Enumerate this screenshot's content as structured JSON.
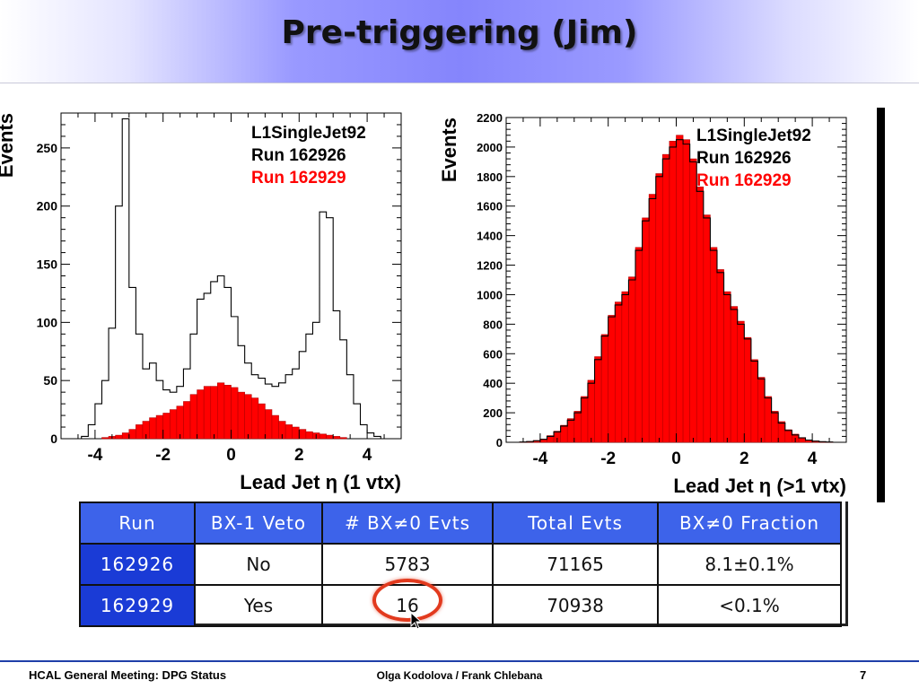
{
  "slide": {
    "title": "Pre-triggering (Jim)",
    "footer_left": "HCAL General Meeting: DPG Status",
    "footer_center": "Olga Kodolova / Frank Chlebana",
    "footer_right": "7"
  },
  "colors": {
    "title_gradient_center": "#8585fc",
    "header_blue": "#3d63ea",
    "run_cell_blue": "#1a3bd6",
    "series_red": "#ff0000",
    "series_black": "#000000",
    "highlight_circle": "#e23a1e",
    "footer_rule": "#1f3fa8"
  },
  "table": {
    "headers": [
      "Run",
      "BX-1 Veto",
      "# BX≠0 Evts",
      "Total Evts",
      "BX≠0 Fraction"
    ],
    "rows": [
      [
        "162926",
        "No",
        "5783",
        "71165",
        "8.1±0.1%"
      ],
      [
        "162929",
        "Yes",
        "16",
        "70938",
        "<0.1%"
      ]
    ]
  },
  "chart_data": [
    {
      "type": "line",
      "legend": [
        "L1SingleJet92",
        "Run 162926",
        "Run 162929"
      ],
      "xlabel": "Lead Jet η (1 vtx)",
      "ylabel": "Events",
      "xlim": [
        -5,
        5
      ],
      "ylim": [
        0,
        280
      ],
      "xticks": [
        -4,
        -2,
        0,
        2,
        4
      ],
      "yticks": [
        0,
        50,
        100,
        150,
        200,
        250
      ],
      "series": [
        {
          "name": "Run 162926",
          "color": "#000000",
          "style": "step",
          "x": [
            -4.3,
            -4.1,
            -3.9,
            -3.7,
            -3.5,
            -3.3,
            -3.1,
            -2.9,
            -2.7,
            -2.5,
            -2.3,
            -2.1,
            -1.9,
            -1.7,
            -1.5,
            -1.3,
            -1.1,
            -0.9,
            -0.7,
            -0.5,
            -0.3,
            -0.1,
            0.1,
            0.3,
            0.5,
            0.7,
            0.9,
            1.1,
            1.3,
            1.5,
            1.7,
            1.9,
            2.1,
            2.3,
            2.5,
            2.7,
            2.9,
            3.1,
            3.3,
            3.5,
            3.7,
            3.9,
            4.1,
            4.3
          ],
          "values": [
            2,
            12,
            30,
            50,
            95,
            200,
            275,
            130,
            90,
            60,
            65,
            50,
            42,
            40,
            45,
            60,
            90,
            120,
            125,
            135,
            140,
            130,
            105,
            80,
            65,
            55,
            52,
            47,
            45,
            48,
            55,
            60,
            75,
            90,
            100,
            195,
            190,
            110,
            85,
            55,
            30,
            12,
            5,
            2
          ]
        },
        {
          "name": "Run 162929",
          "color": "#ff0000",
          "style": "filled",
          "x": [
            -4.3,
            -4.1,
            -3.9,
            -3.7,
            -3.5,
            -3.3,
            -3.1,
            -2.9,
            -2.7,
            -2.5,
            -2.3,
            -2.1,
            -1.9,
            -1.7,
            -1.5,
            -1.3,
            -1.1,
            -0.9,
            -0.7,
            -0.5,
            -0.3,
            -0.1,
            0.1,
            0.3,
            0.5,
            0.7,
            0.9,
            1.1,
            1.3,
            1.5,
            1.7,
            1.9,
            2.1,
            2.3,
            2.5,
            2.7,
            2.9,
            3.1,
            3.3,
            3.5,
            3.7,
            3.9,
            4.1,
            4.3
          ],
          "values": [
            0,
            0,
            0,
            1,
            2,
            3,
            5,
            8,
            12,
            15,
            18,
            20,
            22,
            25,
            28,
            32,
            38,
            42,
            45,
            45,
            48,
            46,
            44,
            40,
            38,
            35,
            30,
            25,
            20,
            15,
            12,
            10,
            8,
            6,
            5,
            4,
            3,
            2,
            1,
            0,
            0,
            0,
            0,
            0
          ]
        }
      ]
    },
    {
      "type": "bar",
      "legend": [
        "L1SingleJet92",
        "Run 162926",
        "Run 162929"
      ],
      "xlabel": "Lead Jet η (>1 vtx)",
      "ylabel": "Events",
      "xlim": [
        -5,
        5
      ],
      "ylim": [
        0,
        2200
      ],
      "xticks": [
        -4,
        -2,
        0,
        2,
        4
      ],
      "yticks": [
        0,
        200,
        400,
        600,
        800,
        1000,
        1200,
        1400,
        1600,
        1800,
        2000,
        2200
      ],
      "series": [
        {
          "name": "Run 162926",
          "color": "#000000",
          "style": "step",
          "x": [
            -4.5,
            -4.3,
            -4.1,
            -3.9,
            -3.7,
            -3.5,
            -3.3,
            -3.1,
            -2.9,
            -2.7,
            -2.5,
            -2.3,
            -2.1,
            -1.9,
            -1.7,
            -1.5,
            -1.3,
            -1.1,
            -0.9,
            -0.7,
            -0.5,
            -0.3,
            -0.1,
            0.1,
            0.3,
            0.5,
            0.7,
            0.9,
            1.1,
            1.3,
            1.5,
            1.7,
            1.9,
            2.1,
            2.3,
            2.5,
            2.7,
            2.9,
            3.1,
            3.3,
            3.5,
            3.7,
            3.9,
            4.1,
            4.3,
            4.5
          ],
          "values": [
            2,
            5,
            10,
            20,
            40,
            70,
            110,
            150,
            200,
            300,
            400,
            560,
            720,
            850,
            930,
            1000,
            1100,
            1300,
            1500,
            1650,
            1800,
            1920,
            2000,
            2050,
            2020,
            1900,
            1700,
            1520,
            1300,
            1150,
            1000,
            900,
            800,
            700,
            550,
            430,
            300,
            200,
            130,
            80,
            50,
            30,
            15,
            8,
            4,
            2
          ]
        },
        {
          "name": "Run 162929",
          "color": "#ff0000",
          "style": "filled",
          "x": [
            -4.5,
            -4.3,
            -4.1,
            -3.9,
            -3.7,
            -3.5,
            -3.3,
            -3.1,
            -2.9,
            -2.7,
            -2.5,
            -2.3,
            -2.1,
            -1.9,
            -1.7,
            -1.5,
            -1.3,
            -1.1,
            -0.9,
            -0.7,
            -0.5,
            -0.3,
            -0.1,
            0.1,
            0.3,
            0.5,
            0.7,
            0.9,
            1.1,
            1.3,
            1.5,
            1.7,
            1.9,
            2.1,
            2.3,
            2.5,
            2.7,
            2.9,
            3.1,
            3.3,
            3.5,
            3.7,
            3.9,
            4.1,
            4.3,
            4.5
          ],
          "values": [
            2,
            5,
            12,
            22,
            45,
            75,
            115,
            160,
            210,
            310,
            420,
            580,
            730,
            860,
            950,
            1020,
            1120,
            1320,
            1520,
            1680,
            1820,
            1950,
            2040,
            2080,
            2050,
            1920,
            1730,
            1540,
            1320,
            1170,
            1020,
            920,
            820,
            710,
            560,
            440,
            310,
            210,
            140,
            85,
            55,
            32,
            16,
            9,
            4,
            2
          ]
        }
      ]
    }
  ]
}
